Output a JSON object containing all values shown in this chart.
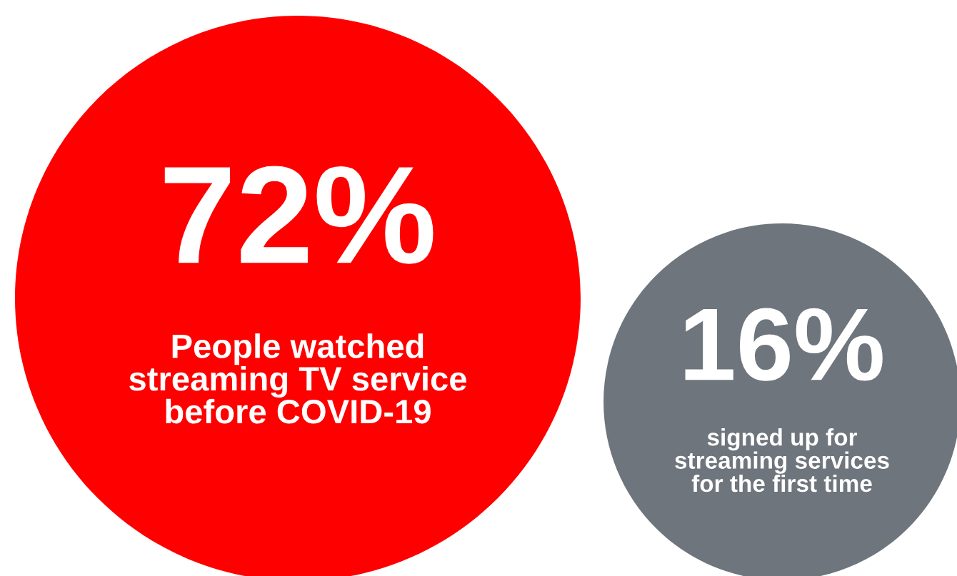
{
  "chart_data": {
    "type": "other",
    "categories": [
      "People watched\nstreaming TV service\nbefore COVID-19",
      "signed up for\nstreaming services\nfor the first time"
    ],
    "values": [
      72,
      16
    ],
    "value_labels": [
      "72%",
      "16%"
    ],
    "colors": [
      "#fe0000",
      "#6e757c"
    ]
  }
}
